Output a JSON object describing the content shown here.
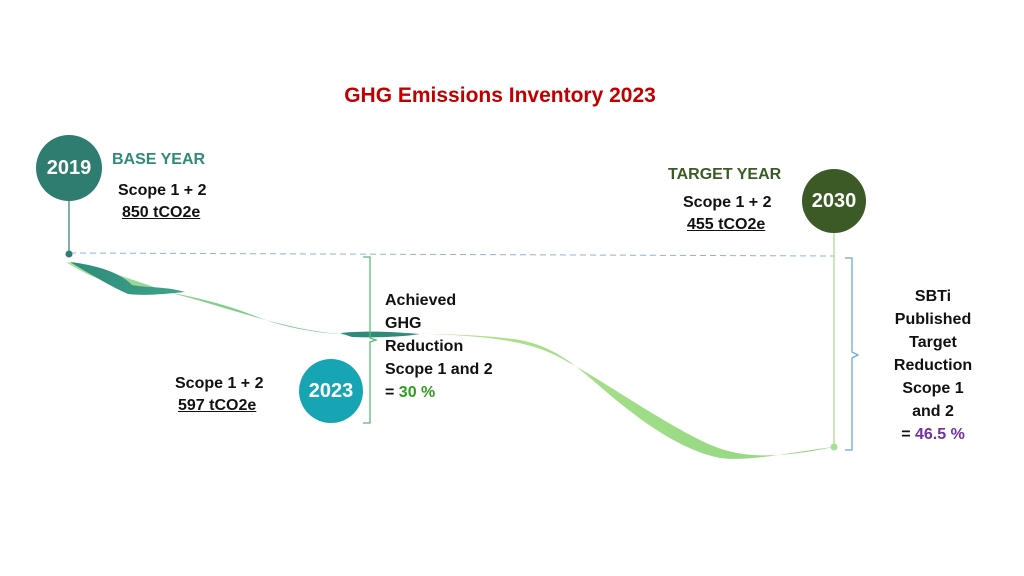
{
  "title": "GHG Emissions Inventory 2023",
  "base": {
    "year": "2019",
    "label": "BASE YEAR",
    "scope": "Scope 1 + 2",
    "value": "850 tCO2e"
  },
  "current": {
    "year": "2023",
    "scope": "Scope 1 + 2",
    "value": "597 tCO2e"
  },
  "target": {
    "year": "2030",
    "label": "TARGET YEAR",
    "scope": "Scope 1 + 2",
    "value": "455 tCO2e"
  },
  "achieved": {
    "line1": "Achieved",
    "line2": "GHG",
    "line3": "Reduction",
    "line4": "Scope 1 and 2",
    "prefix": "=",
    "value": "30 %"
  },
  "sbti": {
    "line1": "SBTi",
    "line2": "Published",
    "line3": "Target",
    "line4": "Reduction",
    "line5": "Scope 1",
    "line6": "and 2",
    "prefix": "=",
    "value": "46.5 %"
  },
  "colors": {
    "title": "#c00000",
    "base": "#2e7d70",
    "current": "#17a5b3",
    "target": "#3b5a26",
    "achieved_value": "#2e9e1e",
    "sbti_value": "#7030a0",
    "ribbon_light": "#8fd67c",
    "ribbon_dark": "#2e8b7a"
  }
}
